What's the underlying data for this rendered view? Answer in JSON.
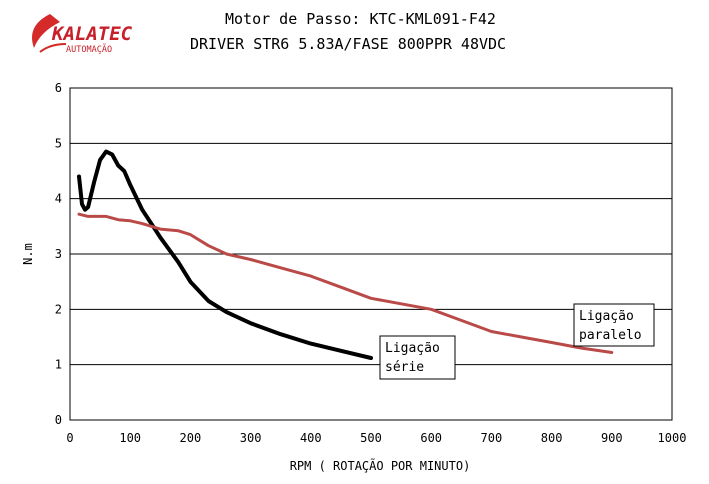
{
  "logo": {
    "name": "KALATEC",
    "tagline": "AUTOMAÇÃO",
    "colors": {
      "red": "#d42a2a",
      "text": "#c8202a"
    }
  },
  "chart_data": {
    "type": "line",
    "title": "Motor de Passo: KTC-KML091-F42",
    "subtitle": "DRIVER STR6  5.83A/FASE  800PPR 48VDC",
    "xlabel": "RPM  ( ROTAÇÃO POR MINUTO)",
    "ylabel": "N.m",
    "xlim": [
      0,
      1000
    ],
    "ylim": [
      0,
      6
    ],
    "xticks": [
      "0",
      "100",
      "200",
      "300",
      "400",
      "500",
      "600",
      "700",
      "800",
      "900",
      "1000"
    ],
    "yticks": [
      "0",
      "1",
      "2",
      "3",
      "4",
      "5",
      "6"
    ],
    "grid": "horizontal",
    "series": [
      {
        "name": "Ligação série",
        "label_lines": [
          "Ligação",
          "série"
        ],
        "color": "#000000",
        "x": [
          15,
          20,
          25,
          30,
          40,
          50,
          60,
          70,
          80,
          90,
          100,
          120,
          150,
          180,
          200,
          230,
          260,
          300,
          350,
          400,
          450,
          500
        ],
        "y": [
          4.4,
          3.9,
          3.8,
          3.85,
          4.3,
          4.7,
          4.85,
          4.8,
          4.6,
          4.5,
          4.25,
          3.8,
          3.3,
          2.85,
          2.5,
          2.15,
          1.95,
          1.75,
          1.55,
          1.38,
          1.25,
          1.12
        ]
      },
      {
        "name": "Ligação paralelo",
        "label_lines": [
          "Ligação",
          "paralelo"
        ],
        "color": "#b94a48",
        "x": [
          15,
          30,
          60,
          80,
          100,
          120,
          150,
          180,
          200,
          230,
          260,
          300,
          350,
          400,
          450,
          500,
          550,
          600,
          650,
          700,
          750,
          800,
          850,
          900
        ],
        "y": [
          3.72,
          3.68,
          3.68,
          3.62,
          3.6,
          3.55,
          3.45,
          3.42,
          3.35,
          3.15,
          3.0,
          2.9,
          2.75,
          2.6,
          2.4,
          2.2,
          2.1,
          2.0,
          1.8,
          1.6,
          1.5,
          1.4,
          1.3,
          1.22
        ]
      }
    ]
  }
}
